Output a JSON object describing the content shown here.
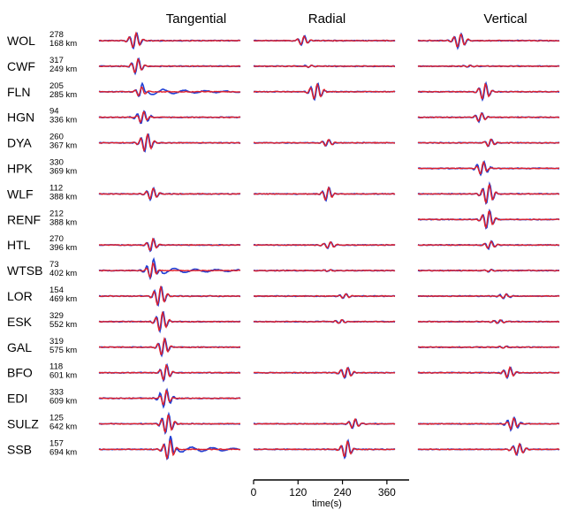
{
  "chart_data": {
    "type": "line",
    "columns": [
      "Tangential",
      "Radial",
      "Vertical"
    ],
    "series": [
      {
        "name": "blue",
        "color": "#1f3fd6"
      },
      {
        "name": "red",
        "color": "#e0202a"
      }
    ],
    "xaxis": {
      "label": "time(s)",
      "ticks": [
        0,
        120,
        240,
        360
      ],
      "range": [
        0,
        420
      ]
    },
    "stations": [
      {
        "name": "WOL",
        "azimuth": "278",
        "distance": "168 km",
        "components": {
          "Tangential": {
            "t": 95,
            "amp": 0.9
          },
          "Radial": {
            "t": 130,
            "amp": 0.55
          },
          "Vertical": {
            "t": 110,
            "amp": 0.8
          }
        }
      },
      {
        "name": "CWF",
        "azimuth": "317",
        "distance": "249 km",
        "components": {
          "Tangential": {
            "t": 100,
            "amp": 0.85
          },
          "Radial": {
            "t": 150,
            "amp": 0.1
          },
          "Vertical": {
            "t": 135,
            "amp": 0.1
          }
        }
      },
      {
        "name": "FLN",
        "azimuth": "205",
        "distance": "285 km",
        "components": {
          "Tangential": {
            "t": 110,
            "amp": 0.55
          },
          "Radial": {
            "t": 165,
            "amp": 0.9
          },
          "Vertical": {
            "t": 175,
            "amp": 0.95
          }
        }
      },
      {
        "name": "HGN",
        "azimuth": "94",
        "distance": "336 km",
        "components": {
          "Tangential": {
            "t": 115,
            "amp": 0.7
          },
          "Vertical": {
            "t": 165,
            "amp": 0.5
          }
        }
      },
      {
        "name": "DYA",
        "azimuth": "260",
        "distance": "367 km",
        "components": {
          "Tangential": {
            "t": 125,
            "amp": 1.0
          },
          "Radial": {
            "t": 195,
            "amp": 0.35
          },
          "Vertical": {
            "t": 190,
            "amp": 0.45
          }
        }
      },
      {
        "name": "HPK",
        "azimuth": "330",
        "distance": "369 km",
        "components": {
          "Vertical": {
            "t": 170,
            "amp": 0.75
          }
        }
      },
      {
        "name": "WLF",
        "azimuth": "112",
        "distance": "388 km",
        "components": {
          "Tangential": {
            "t": 140,
            "amp": 0.7
          },
          "Radial": {
            "t": 195,
            "amp": 0.75
          },
          "Vertical": {
            "t": 185,
            "amp": 1.1
          }
        }
      },
      {
        "name": "RENF",
        "azimuth": "212",
        "distance": "388 km",
        "components": {
          "Vertical": {
            "t": 185,
            "amp": 1.05
          }
        }
      },
      {
        "name": "HTL",
        "azimuth": "270",
        "distance": "396 km",
        "components": {
          "Tangential": {
            "t": 140,
            "amp": 0.75
          },
          "Radial": {
            "t": 200,
            "amp": 0.35
          },
          "Vertical": {
            "t": 190,
            "amp": 0.45
          }
        }
      },
      {
        "name": "WTSB",
        "azimuth": "73",
        "distance": "402 km",
        "components": {
          "Tangential": {
            "t": 140,
            "amp": 0.9
          },
          "Radial": {
            "t": 200,
            "amp": 0.1
          },
          "Vertical": {
            "t": 190,
            "amp": 0.15
          }
        }
      },
      {
        "name": "LOR",
        "azimuth": "154",
        "distance": "469 km",
        "components": {
          "Tangential": {
            "t": 160,
            "amp": 1.1
          },
          "Radial": {
            "t": 240,
            "amp": 0.25
          },
          "Vertical": {
            "t": 230,
            "amp": 0.25
          }
        }
      },
      {
        "name": "ESK",
        "azimuth": "329",
        "distance": "552 km",
        "components": {
          "Tangential": {
            "t": 165,
            "amp": 1.1
          },
          "Radial": {
            "t": 230,
            "amp": 0.2
          },
          "Vertical": {
            "t": 215,
            "amp": 0.2
          }
        }
      },
      {
        "name": "GAL",
        "azimuth": "319",
        "distance": "575 km",
        "components": {
          "Tangential": {
            "t": 170,
            "amp": 1.0
          },
          "Vertical": {
            "t": 230,
            "amp": 0.12
          }
        }
      },
      {
        "name": "BFO",
        "azimuth": "118",
        "distance": "601 km",
        "components": {
          "Tangential": {
            "t": 175,
            "amp": 0.95
          },
          "Radial": {
            "t": 245,
            "amp": 0.6
          },
          "Vertical": {
            "t": 240,
            "amp": 0.6
          }
        }
      },
      {
        "name": "EDI",
        "azimuth": "333",
        "distance": "609 km",
        "components": {
          "Tangential": {
            "t": 175,
            "amp": 0.95
          }
        }
      },
      {
        "name": "SULZ",
        "azimuth": "125",
        "distance": "642 km",
        "components": {
          "Tangential": {
            "t": 180,
            "amp": 1.05
          },
          "Radial": {
            "t": 265,
            "amp": 0.55
          },
          "Vertical": {
            "t": 250,
            "amp": 0.7
          }
        }
      },
      {
        "name": "SSB",
        "azimuth": "157",
        "distance": "694 km",
        "components": {
          "Tangential": {
            "t": 185,
            "amp": 1.1
          },
          "Radial": {
            "t": 245,
            "amp": 1.0
          },
          "Vertical": {
            "t": 265,
            "amp": 0.65
          }
        }
      }
    ]
  }
}
